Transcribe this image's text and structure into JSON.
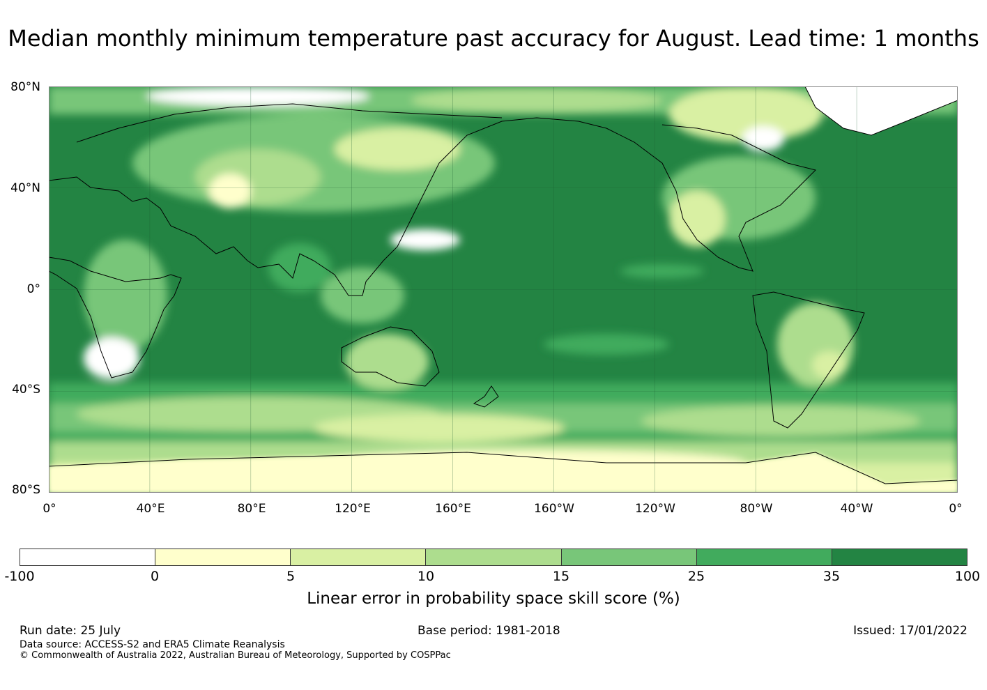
{
  "title": "Median monthly minimum temperature past accuracy for August. Lead time: 1 months",
  "map": {
    "lat_labels": [
      "80°N",
      "40°N",
      "0°",
      "40°S",
      "80°S"
    ],
    "lon_labels": [
      "0°",
      "40°E",
      "80°E",
      "120°E",
      "160°E",
      "160°W",
      "120°W",
      "80°W",
      "40°W",
      "0°"
    ]
  },
  "colorbar": {
    "colors": [
      "#ffffff",
      "#ffffcc",
      "#d9f0a3",
      "#addd8e",
      "#78c679",
      "#41ab5d",
      "#238443"
    ],
    "ticks": [
      "-100",
      "0",
      "5",
      "10",
      "15",
      "25",
      "35",
      "100"
    ],
    "label": "Linear error in probability space skill score (%)"
  },
  "footer": {
    "run_date": "Run date: 25 July",
    "base_period": "Base period: 1981-2018",
    "issued": "Issued: 17/01/2022",
    "data_source": "Data source: ACCESS-S2 and ERA5 Climate Reanalysis",
    "copyright": "© Commonwealth of Australia 2022, Australian Bureau of Meteorology, Supported by COSPPac"
  }
}
